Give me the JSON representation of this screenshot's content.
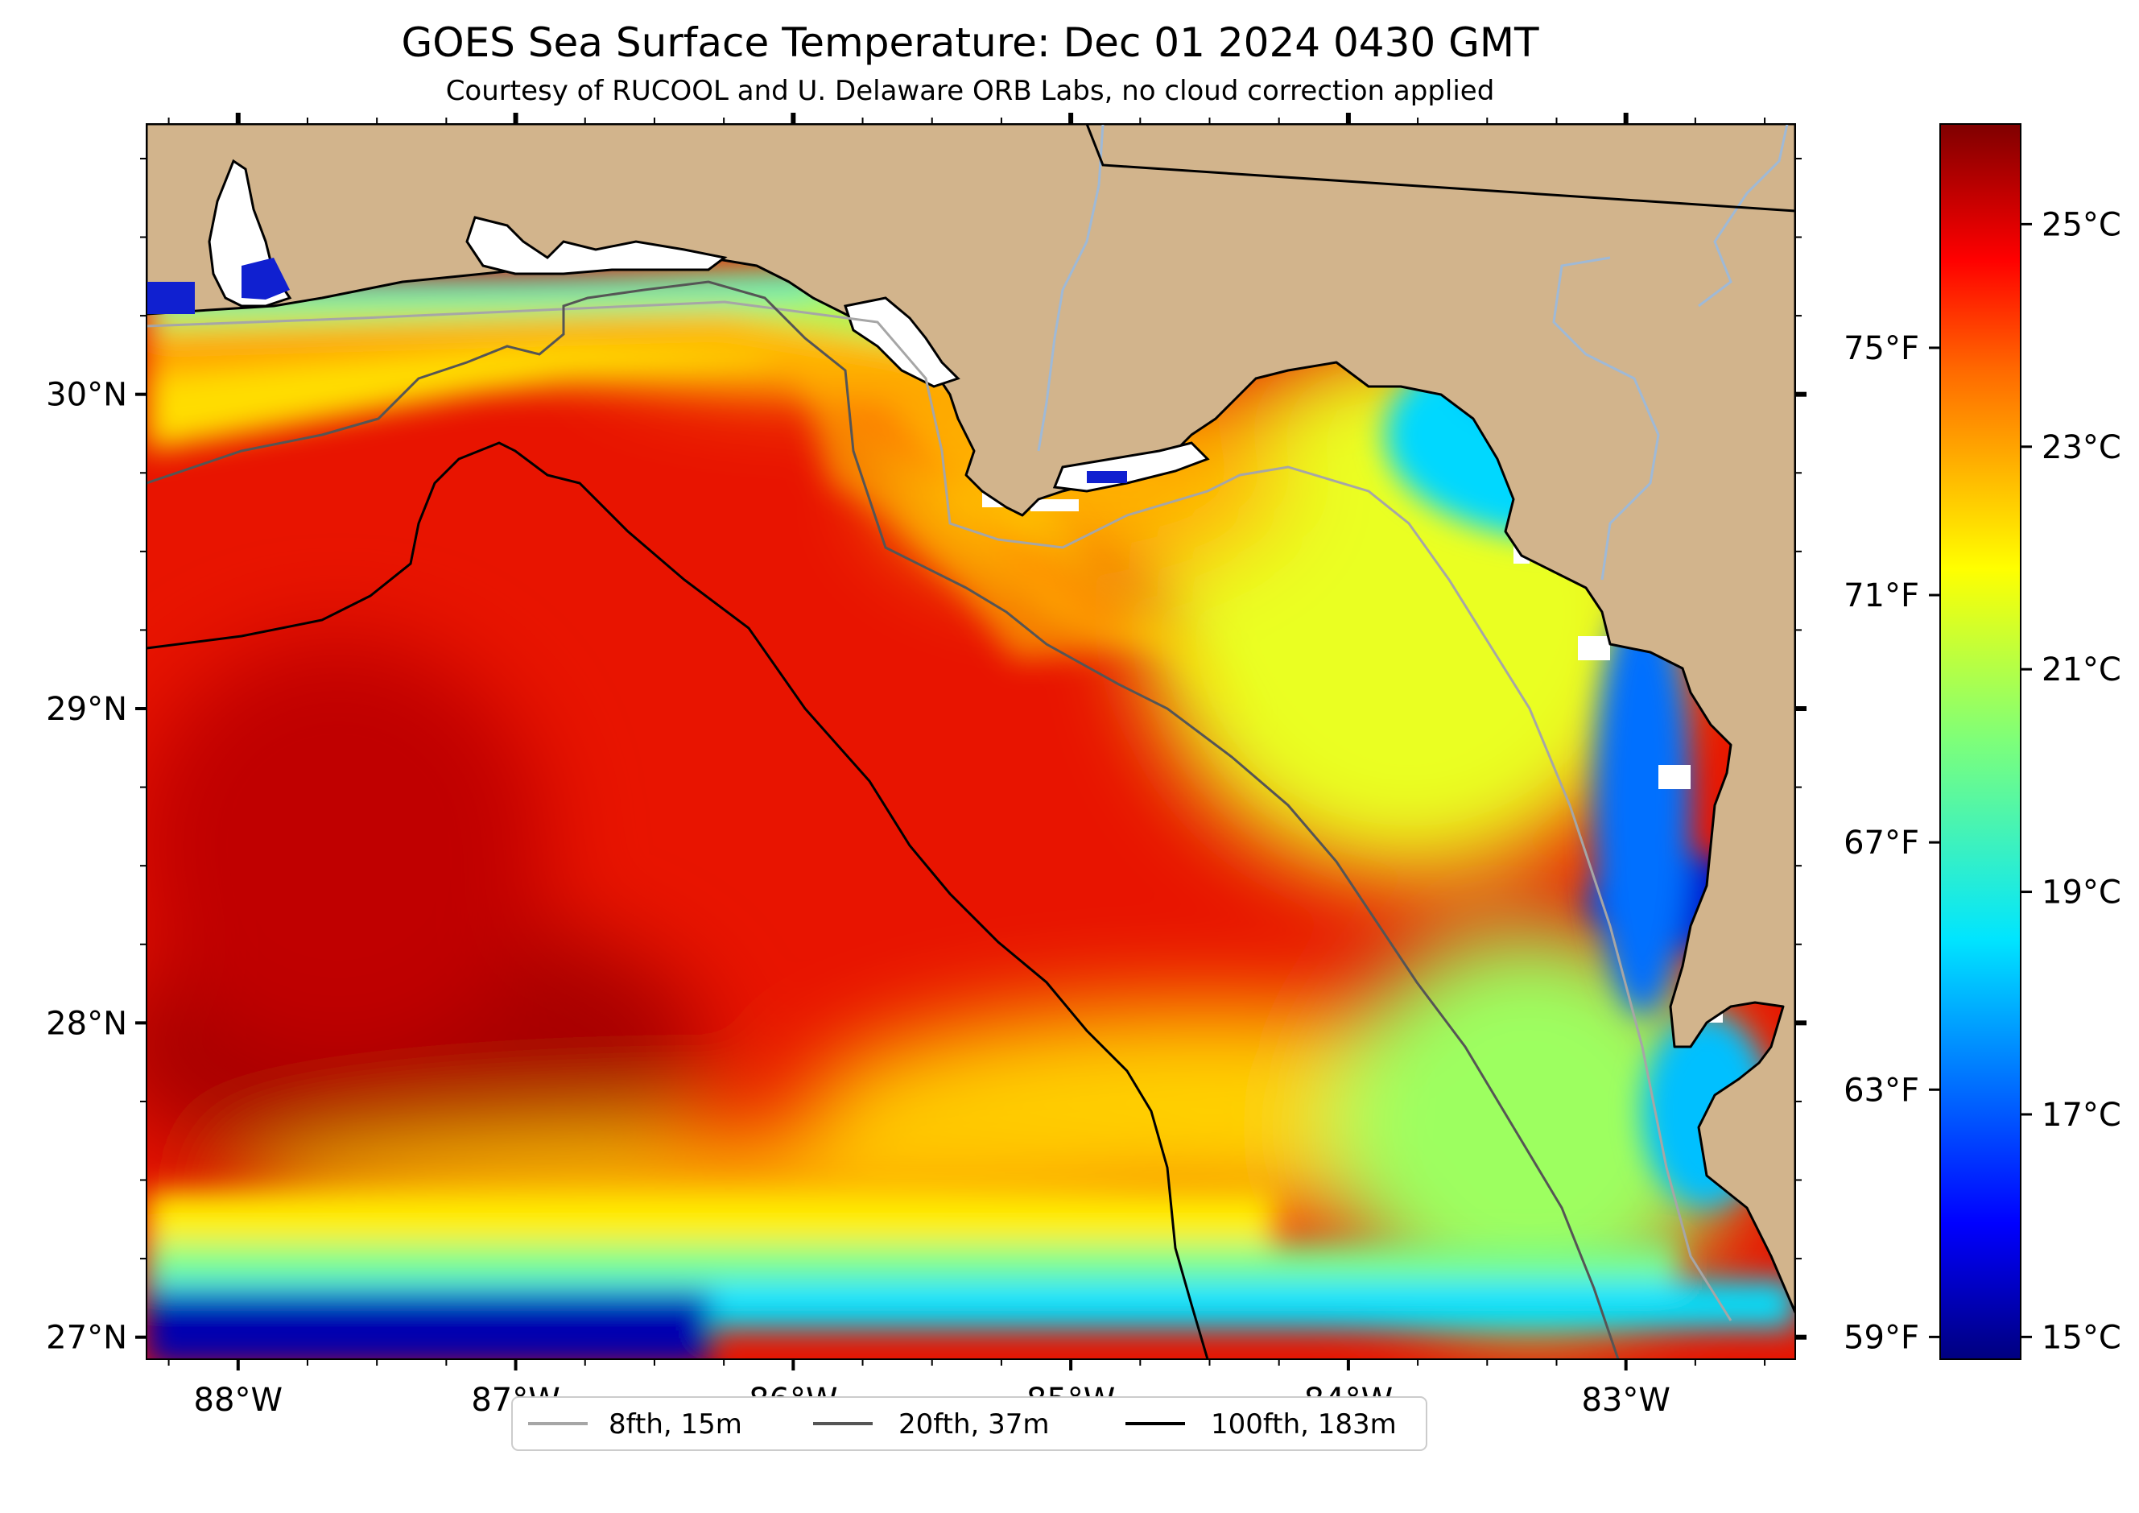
{
  "title": "GOES Sea Surface Temperature: Dec 01 2024 0430 GMT",
  "subtitle": "Courtesy of RUCOOL and U. Delaware ORB Labs, no cloud correction applied",
  "map": {
    "lon_range": [
      -88.33,
      -82.39
    ],
    "lat_range": [
      26.93,
      30.86
    ],
    "lon_ticks": [
      {
        "value": -88,
        "label": "88°W"
      },
      {
        "value": -87,
        "label": "87°W"
      },
      {
        "value": -86,
        "label": "86°W"
      },
      {
        "value": -85,
        "label": "85°W"
      },
      {
        "value": -84,
        "label": "84°W"
      },
      {
        "value": -83,
        "label": "83°W"
      }
    ],
    "lat_ticks": [
      {
        "value": 30,
        "label": "30°N"
      },
      {
        "value": 29,
        "label": "29°N"
      },
      {
        "value": 28,
        "label": "28°N"
      },
      {
        "value": 27,
        "label": "27°N"
      }
    ]
  },
  "colorbar": {
    "colormap": "jet",
    "range_c": [
      14.8,
      25.9
    ],
    "celsius_ticks": [
      {
        "value": 25,
        "label": "25°C"
      },
      {
        "value": 23,
        "label": "23°C"
      },
      {
        "value": 21,
        "label": "21°C"
      },
      {
        "value": 19,
        "label": "19°C"
      },
      {
        "value": 17,
        "label": "17°C"
      },
      {
        "value": 15,
        "label": "15°C"
      }
    ],
    "fahrenheit_ticks": [
      {
        "value": 75,
        "label": "75°F"
      },
      {
        "value": 71,
        "label": "71°F"
      },
      {
        "value": 67,
        "label": "67°F"
      },
      {
        "value": 63,
        "label": "63°F"
      },
      {
        "value": 59,
        "label": "59°F"
      }
    ]
  },
  "legend": [
    {
      "label": "8fth, 15m",
      "color": "#a6a6a6"
    },
    {
      "label": "20fth, 37m",
      "color": "#555555"
    },
    {
      "label": "100fth, 183m",
      "color": "#000000"
    }
  ],
  "colors": {
    "land": "#d2b48c",
    "coastline": "#000000",
    "rivers": "#9fb9d6",
    "state_border": "#000000"
  }
}
